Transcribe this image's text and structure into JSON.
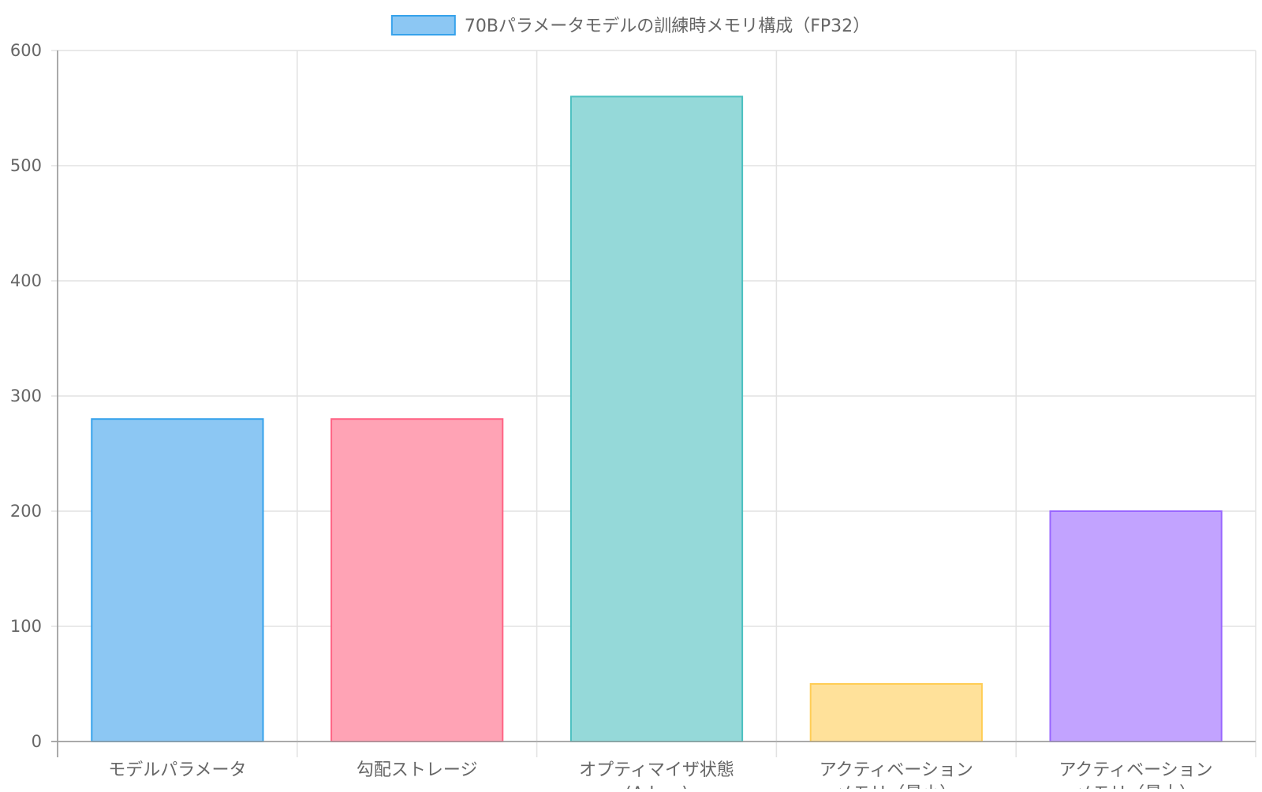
{
  "chart_data": {
    "type": "bar",
    "legend": {
      "label": "70Bパラメータモデルの訓練時メモリ構成（FP32）",
      "color": "#36a2eb",
      "fill": "#8cc7f3",
      "placement": "top-center"
    },
    "categories": [
      [
        "モデルパラメータ"
      ],
      [
        "勾配ストレージ"
      ],
      [
        "オプティマイザ状態",
        "(Adam)"
      ],
      [
        "アクティベーション",
        "メモリ（最小）"
      ],
      [
        "アクティベーション",
        "メモリ（最大）"
      ]
    ],
    "values": [
      280,
      280,
      560,
      50,
      200
    ],
    "colors": {
      "border": [
        "#36a2eb",
        "#ff6384",
        "#4bc0c0",
        "#ffcd56",
        "#9966ff"
      ],
      "fill": [
        "#8cc7f3",
        "#ffa3b5",
        "#95d9d9",
        "#ffe19a",
        "#c2a3ff"
      ]
    },
    "yticks": [
      0,
      100,
      200,
      300,
      400,
      500,
      600
    ],
    "ylim": [
      0,
      600
    ],
    "grid": true
  }
}
